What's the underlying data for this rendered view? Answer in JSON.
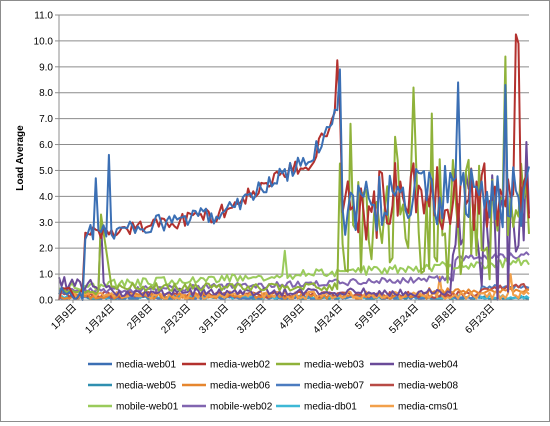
{
  "chart_data": {
    "type": "line",
    "title": "",
    "xlabel": "",
    "ylabel": "Load Average",
    "ylim": [
      0,
      11
    ],
    "yticks": [
      "0.0",
      "1.0",
      "2.0",
      "3.0",
      "4.0",
      "5.0",
      "6.0",
      "7.0",
      "8.0",
      "9.0",
      "10.0",
      "11.0"
    ],
    "xticks": [
      "1月9日",
      "1月24日",
      "2月8日",
      "2月23日",
      "3月10日",
      "3月25日",
      "4月9日",
      "4月24日",
      "5月9日",
      "5月24日",
      "6月8日",
      "6月23日"
    ],
    "grid": "horizontal",
    "legend_position": "bottom",
    "n_points": 180,
    "series": [
      {
        "name": "media-web01",
        "color": "#3B6FB4"
      },
      {
        "name": "media-web02",
        "color": "#B3312E"
      },
      {
        "name": "media-web03",
        "color": "#8FB23A"
      },
      {
        "name": "media-web04",
        "color": "#6A4A98"
      },
      {
        "name": "media-web05",
        "color": "#2F8FB0"
      },
      {
        "name": "media-web06",
        "color": "#E6862E"
      },
      {
        "name": "media-web07",
        "color": "#4C7CC0"
      },
      {
        "name": "media-web08",
        "color": "#B84A45"
      },
      {
        "name": "mobile-web01",
        "color": "#9ACB5B"
      },
      {
        "name": "mobile-web02",
        "color": "#8165B0"
      },
      {
        "name": "media-db01",
        "color": "#3DB8D6"
      },
      {
        "name": "media-cms01",
        "color": "#F2A04A"
      }
    ]
  }
}
